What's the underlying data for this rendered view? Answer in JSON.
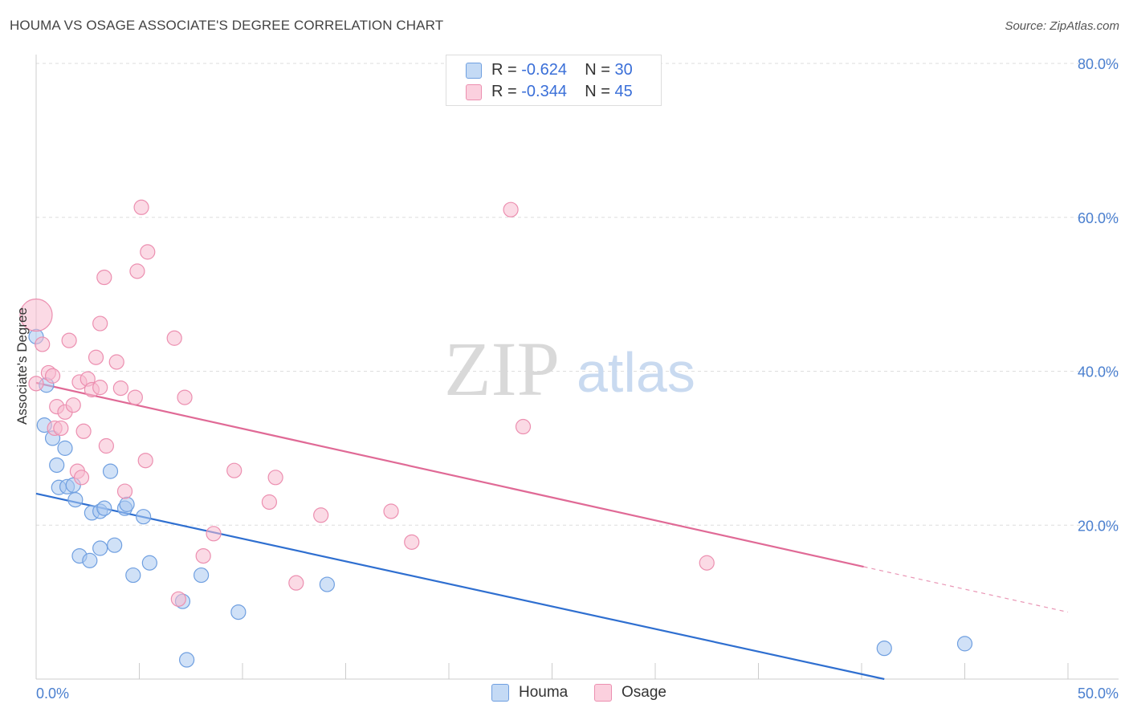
{
  "title": "HOUMA VS OSAGE ASSOCIATE'S DEGREE CORRELATION CHART",
  "source": "Source: ZipAtlas.com",
  "watermark": {
    "zip": "ZIP",
    "atlas": "atlas"
  },
  "legend": {
    "houma": {
      "r_label": "R = ",
      "r_value": "-0.624",
      "n_label": "N = ",
      "n_value": "30"
    },
    "osage": {
      "r_label": "R = ",
      "r_value": "-0.344",
      "n_label": "N = ",
      "n_value": "45"
    }
  },
  "bottom_legend": {
    "houma": "Houma",
    "osage": "Osage"
  },
  "colors": {
    "houma_fill": "#a9c8f0",
    "houma_stroke": "#6f9fe0",
    "houma_line": "#2f6fd0",
    "osage_fill": "#f7bcd0",
    "osage_stroke": "#ec8fb0",
    "osage_line": "#e06a96",
    "tick_text": "#4a7fcf",
    "grid": "#dddddd"
  },
  "chart_data": {
    "type": "scatter",
    "title": "HOUMA VS OSAGE ASSOCIATE'S DEGREE CORRELATION CHART",
    "xlabel": "",
    "ylabel": "Associate's Degree",
    "xlim": [
      0,
      50
    ],
    "ylim": [
      0,
      80
    ],
    "x_tick_labels": [
      "0.0%",
      "50.0%"
    ],
    "y_tick_labels": [
      "20.0%",
      "40.0%",
      "60.0%",
      "80.0%"
    ],
    "y_ticks": [
      20,
      40,
      60,
      80
    ],
    "series": [
      {
        "name": "Houma",
        "points": [
          [
            0.0,
            44.5
          ],
          [
            0.5,
            38.2
          ],
          [
            0.4,
            33.0
          ],
          [
            0.8,
            31.3
          ],
          [
            1.0,
            27.8
          ],
          [
            1.4,
            30.0
          ],
          [
            1.1,
            24.9
          ],
          [
            1.5,
            25.0
          ],
          [
            1.8,
            25.2
          ],
          [
            1.9,
            23.3
          ],
          [
            2.7,
            21.6
          ],
          [
            3.1,
            21.8
          ],
          [
            3.3,
            22.2
          ],
          [
            3.6,
            27.0
          ],
          [
            4.3,
            22.2
          ],
          [
            4.4,
            22.7
          ],
          [
            5.2,
            21.1
          ],
          [
            2.1,
            16.0
          ],
          [
            2.6,
            15.4
          ],
          [
            3.1,
            17.0
          ],
          [
            3.8,
            17.4
          ],
          [
            4.7,
            13.5
          ],
          [
            5.5,
            15.1
          ],
          [
            7.1,
            10.1
          ],
          [
            8.0,
            13.5
          ],
          [
            7.3,
            2.5
          ],
          [
            9.8,
            8.7
          ],
          [
            14.1,
            12.3
          ],
          [
            41.1,
            4.0
          ],
          [
            45.0,
            4.6
          ]
        ],
        "trend": {
          "x": [
            0,
            41.1
          ],
          "y": [
            24.1,
            0
          ]
        }
      },
      {
        "name": "Osage",
        "points": [
          [
            0.0,
            47.3
          ],
          [
            0.3,
            43.5
          ],
          [
            0.6,
            39.8
          ],
          [
            0.8,
            39.4
          ],
          [
            0.9,
            32.6
          ],
          [
            1.0,
            35.4
          ],
          [
            1.2,
            32.6
          ],
          [
            1.4,
            34.7
          ],
          [
            1.6,
            44.0
          ],
          [
            1.8,
            35.6
          ],
          [
            2.0,
            27.0
          ],
          [
            2.1,
            38.6
          ],
          [
            2.2,
            26.2
          ],
          [
            2.3,
            32.2
          ],
          [
            2.5,
            39.0
          ],
          [
            2.7,
            37.6
          ],
          [
            2.9,
            41.8
          ],
          [
            3.1,
            37.9
          ],
          [
            3.1,
            46.2
          ],
          [
            3.3,
            52.2
          ],
          [
            3.4,
            30.3
          ],
          [
            3.9,
            41.2
          ],
          [
            4.1,
            37.8
          ],
          [
            4.3,
            24.4
          ],
          [
            4.8,
            36.6
          ],
          [
            4.9,
            53.0
          ],
          [
            5.1,
            61.3
          ],
          [
            5.3,
            28.4
          ],
          [
            5.4,
            55.5
          ],
          [
            6.7,
            44.3
          ],
          [
            6.9,
            10.4
          ],
          [
            7.2,
            36.6
          ],
          [
            8.1,
            16.0
          ],
          [
            8.6,
            18.9
          ],
          [
            9.6,
            27.1
          ],
          [
            11.3,
            23.0
          ],
          [
            11.6,
            26.2
          ],
          [
            12.6,
            12.5
          ],
          [
            13.8,
            21.3
          ],
          [
            17.2,
            21.8
          ],
          [
            18.2,
            17.8
          ],
          [
            23.0,
            61.0
          ],
          [
            23.6,
            32.8
          ],
          [
            32.5,
            15.1
          ],
          [
            0.0,
            38.4
          ]
        ],
        "trend": {
          "x": [
            0,
            40.1
          ],
          "y": [
            38.5,
            14.6
          ]
        },
        "trend_dashed": {
          "x": [
            40.1,
            50
          ],
          "y": [
            14.6,
            8.7
          ]
        }
      }
    ]
  }
}
